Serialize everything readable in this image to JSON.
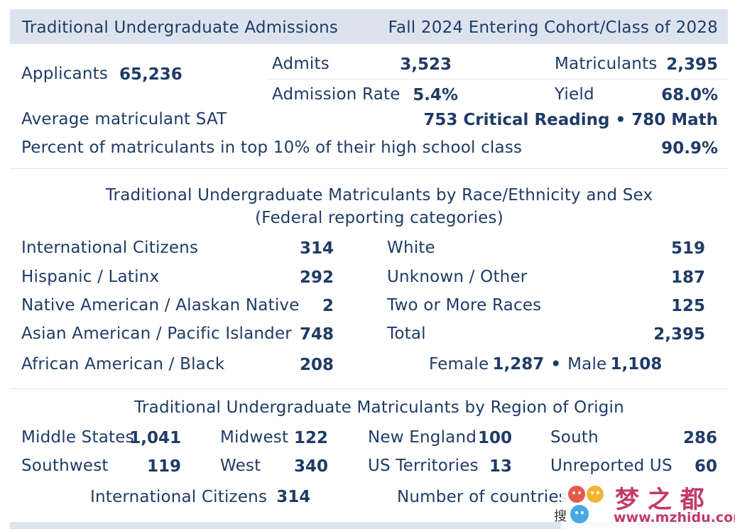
{
  "header": {
    "left": "Traditional Undergraduate Admissions",
    "right": "Fall 2024 Entering Cohort/Class of 2028"
  },
  "summary": {
    "applicants_label": "Applicants",
    "applicants_value": "65,236",
    "admits_label": "Admits",
    "admits_value": "3,523",
    "matriculants_label": "Matriculants",
    "matriculants_value": "2,395",
    "admission_rate_label": "Admission Rate",
    "admission_rate_value": "5.4%",
    "yield_label": "Yield",
    "yield_value": "68.0%",
    "sat_label": "Average matriculant SAT",
    "sat_reading": "753 Critical Reading",
    "sat_sep": "•",
    "sat_math": "780 Math",
    "top10_label": "Percent of matriculants in top 10% of their high school class",
    "top10_value": "90.9%"
  },
  "race": {
    "title_line1": "Traditional Undergraduate Matriculants by Race/Ethnicity and Sex",
    "title_line2": "(Federal reporting categories)",
    "left": [
      {
        "label": "International Citizens",
        "value": "314"
      },
      {
        "label": "Hispanic / Latinx",
        "value": "292"
      },
      {
        "label": "Native American / Alaskan Native",
        "value": "2"
      },
      {
        "label": "Asian American / Pacific Islander",
        "value": "748"
      },
      {
        "label": "African American / Black",
        "value": "208"
      }
    ],
    "right": [
      {
        "label": "White",
        "value": "519"
      },
      {
        "label": "Unknown / Other",
        "value": "187"
      },
      {
        "label": "Two or More Races",
        "value": "125"
      },
      {
        "label": "Total",
        "value": "2,395"
      }
    ],
    "female_label": "Female",
    "female_value": "1,287",
    "sex_sep": "•",
    "male_label": "Male",
    "male_value": "1,108"
  },
  "region": {
    "title": "Traditional Undergraduate Matriculants by Region of Origin",
    "rows": [
      [
        {
          "label": "Middle States",
          "value": "1,041"
        },
        {
          "label": "Midwest",
          "value": "122"
        },
        {
          "label": "New England",
          "value": "100"
        },
        {
          "label": "South",
          "value": "286"
        }
      ],
      [
        {
          "label": "Southwest",
          "value": "119"
        },
        {
          "label": "West",
          "value": "340"
        },
        {
          "label": "US Territories",
          "value": "13"
        },
        {
          "label": "Unreported US",
          "value": "60"
        }
      ]
    ],
    "intl_label": "International Citizens",
    "intl_value": "314",
    "countries_label": "Number of countries"
  },
  "watermark": {
    "chinese": "梦 之 都",
    "url": "www.mzhidu.com",
    "partial": "搜"
  },
  "colors": {
    "text": "#1f3b66",
    "band": "#dde3ee",
    "rule": "#e3e6eb"
  }
}
